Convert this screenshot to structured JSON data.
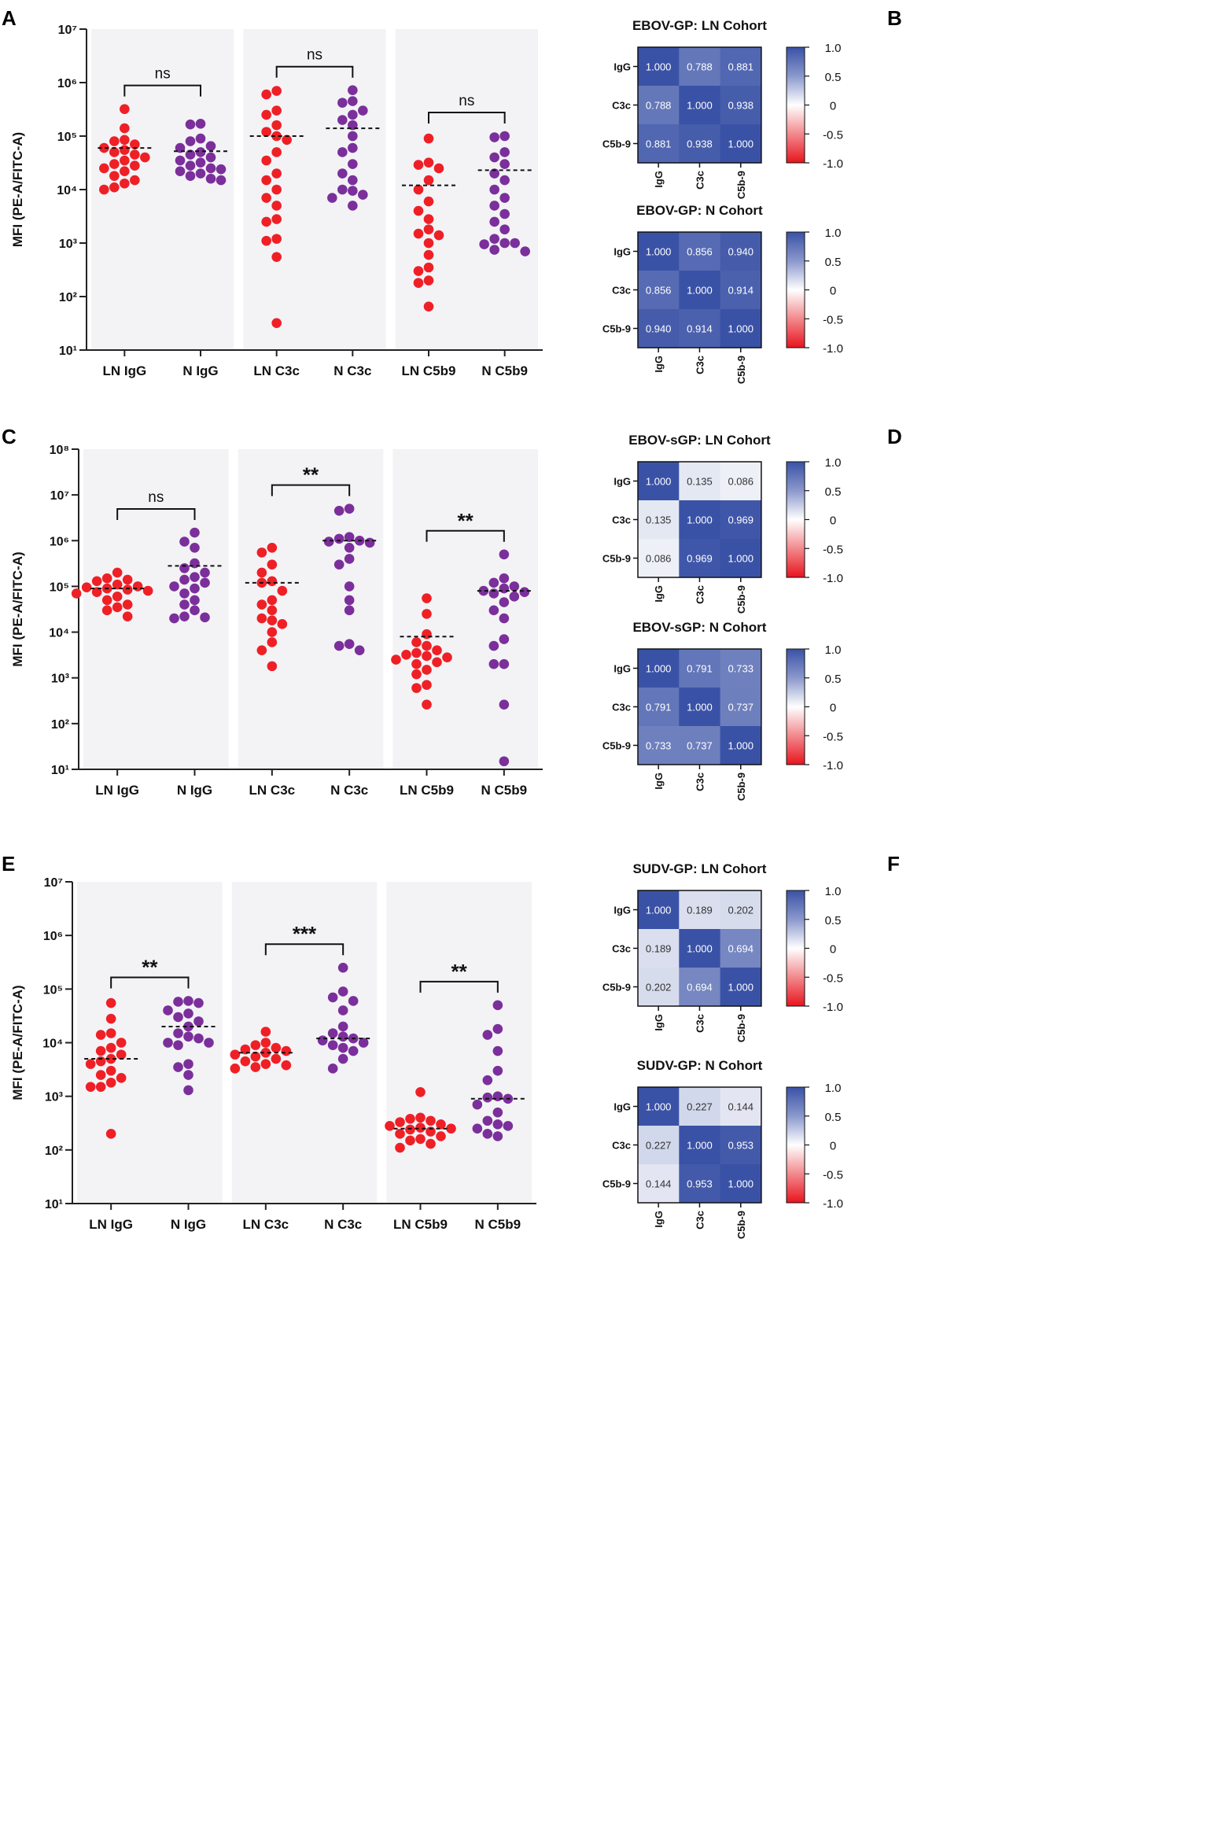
{
  "colors": {
    "ln": "#ee2026",
    "n": "#7b2f9b",
    "band": "#f3f3f6",
    "heat_pos": "#3a52a6",
    "heat_mid": "#ffffff",
    "heat_neg": "#e8141d",
    "axis": "#222222"
  },
  "categories": [
    "LN IgG",
    "N IgG",
    "LN C3c",
    "N C3c",
    "LN C5b9",
    "N C5b9"
  ],
  "ylabel": "MFI (PE-A/FITC-A)",
  "heat_labels": [
    "IgG",
    "C3c",
    "C5b-9"
  ],
  "colorbar_ticks": [
    "1.0",
    "0.5",
    "0",
    "-0.5",
    "-1.0"
  ],
  "chart_data": [
    {
      "panel": "A",
      "type": "scatter",
      "yscale": "log",
      "ylim_exp": [
        1,
        7
      ],
      "tick_labels": [
        "10¹",
        "10²",
        "10³",
        "10⁴",
        "10⁵",
        "10⁶",
        "10⁷"
      ],
      "significance": [
        "ns",
        "ns",
        "ns"
      ],
      "series": [
        {
          "name": "LN IgG",
          "median": 60000,
          "values": [
            320000,
            140000,
            85000,
            80000,
            70000,
            60000,
            55000,
            50000,
            45000,
            40000,
            35000,
            30000,
            28000,
            25000,
            22000,
            18000,
            15000,
            13000,
            11000,
            10000
          ]
        },
        {
          "name": "N IgG",
          "median": 52000,
          "values": [
            170000,
            165000,
            90000,
            80000,
            65000,
            60000,
            50000,
            45000,
            40000,
            35000,
            32000,
            28000,
            25000,
            24000,
            22000,
            20000,
            18000,
            16000,
            15000
          ]
        },
        {
          "name": "LN C3c",
          "median": 100000,
          "values": [
            700000,
            600000,
            300000,
            250000,
            160000,
            120000,
            100000,
            85000,
            50000,
            35000,
            20000,
            15000,
            10000,
            7000,
            5000,
            2800,
            2500,
            1200,
            1100,
            550,
            32
          ]
        },
        {
          "name": "N C3c",
          "median": 140000,
          "values": [
            720000,
            450000,
            420000,
            300000,
            250000,
            200000,
            160000,
            100000,
            60000,
            50000,
            30000,
            20000,
            15000,
            10000,
            9500,
            8000,
            7000,
            5000
          ]
        },
        {
          "name": "LN C5b9",
          "median": 12000,
          "values": [
            90000,
            32000,
            29000,
            25000,
            15000,
            10000,
            6000,
            4000,
            2800,
            1800,
            1500,
            1400,
            1000,
            600,
            350,
            300,
            200,
            180,
            65
          ]
        },
        {
          "name": "N C5b9",
          "median": 23000,
          "values": [
            100000,
            95000,
            50000,
            40000,
            30000,
            20000,
            15000,
            10000,
            7000,
            5000,
            3500,
            2500,
            1800,
            1200,
            1000,
            1000,
            950,
            750,
            700
          ]
        }
      ]
    },
    {
      "panel": "C",
      "type": "scatter",
      "yscale": "log",
      "ylim_exp": [
        1,
        8
      ],
      "tick_labels": [
        "10¹",
        "10²",
        "10³",
        "10⁴",
        "10⁵",
        "10⁶",
        "10⁷",
        "10⁸"
      ],
      "significance": [
        "ns",
        "**",
        "**"
      ],
      "series": [
        {
          "name": "LN IgG",
          "median": 90000,
          "values": [
            200000,
            150000,
            140000,
            130000,
            110000,
            100000,
            95000,
            90000,
            85000,
            80000,
            75000,
            70000,
            60000,
            50000,
            40000,
            35000,
            30000,
            22000
          ]
        },
        {
          "name": "N IgG",
          "median": 280000,
          "values": [
            1500000,
            950000,
            700000,
            320000,
            250000,
            200000,
            160000,
            140000,
            120000,
            100000,
            90000,
            70000,
            50000,
            40000,
            30000,
            22000,
            21000,
            20000
          ]
        },
        {
          "name": "LN C3c",
          "median": 120000,
          "values": [
            700000,
            550000,
            300000,
            200000,
            130000,
            120000,
            80000,
            50000,
            40000,
            30000,
            20000,
            18000,
            15000,
            10000,
            6000,
            4000,
            1800
          ]
        },
        {
          "name": "N C3c",
          "median": 1000000,
          "values": [
            5000000,
            4500000,
            1200000,
            1100000,
            1000000,
            950000,
            900000,
            700000,
            400000,
            300000,
            100000,
            50000,
            30000,
            5500,
            5000,
            4000
          ]
        },
        {
          "name": "LN C5b9",
          "median": 8000,
          "values": [
            55000,
            25000,
            9000,
            6000,
            5000,
            4000,
            3500,
            3200,
            3000,
            2800,
            2500,
            2200,
            2000,
            1500,
            1200,
            700,
            600,
            260
          ]
        },
        {
          "name": "N C5b9",
          "median": 80000,
          "values": [
            500000,
            150000,
            120000,
            100000,
            90000,
            80000,
            75000,
            70000,
            60000,
            45000,
            30000,
            20000,
            7000,
            5000,
            2000,
            2000,
            260,
            15
          ]
        }
      ]
    },
    {
      "panel": "E",
      "type": "scatter",
      "yscale": "log",
      "ylim_exp": [
        1,
        7
      ],
      "tick_labels": [
        "10¹",
        "10²",
        "10³",
        "10⁴",
        "10⁵",
        "10⁶",
        "10⁷"
      ],
      "significance": [
        "**",
        "***",
        "**"
      ],
      "series": [
        {
          "name": "LN IgG",
          "median": 5000,
          "values": [
            55000,
            28000,
            15000,
            14000,
            10000,
            8000,
            7000,
            6000,
            5000,
            4500,
            4000,
            3000,
            2500,
            2200,
            1800,
            1500,
            1500,
            200
          ]
        },
        {
          "name": "N IgG",
          "median": 20000,
          "values": [
            60000,
            58000,
            55000,
            40000,
            35000,
            30000,
            25000,
            20000,
            15000,
            13000,
            12000,
            10000,
            10000,
            9000,
            4000,
            3500,
            2500,
            1300
          ]
        },
        {
          "name": "LN C3c",
          "median": 6500,
          "values": [
            16000,
            10000,
            9000,
            8000,
            7500,
            7000,
            6500,
            6000,
            5500,
            5000,
            4500,
            4000,
            3800,
            3500,
            3300
          ]
        },
        {
          "name": "N C3c",
          "median": 12000,
          "values": [
            250000,
            90000,
            70000,
            60000,
            40000,
            20000,
            15000,
            13000,
            12000,
            11000,
            10000,
            9000,
            8000,
            7000,
            5000,
            3300
          ]
        },
        {
          "name": "LN C5b9",
          "median": 250,
          "values": [
            1200,
            400,
            380,
            350,
            330,
            300,
            280,
            260,
            250,
            240,
            220,
            200,
            180,
            160,
            150,
            130,
            110
          ]
        },
        {
          "name": "N C5b9",
          "median": 900,
          "values": [
            50000,
            18000,
            14000,
            7000,
            3000,
            2000,
            1000,
            950,
            900,
            700,
            500,
            350,
            300,
            280,
            250,
            200,
            180
          ]
        }
      ]
    },
    {
      "panel": "B",
      "type": "heatmap",
      "title": "EBOV-GP: LN Cohort",
      "matrix": [
        [
          "1.000",
          "0.788",
          "0.881"
        ],
        [
          "0.788",
          "1.000",
          "0.938"
        ],
        [
          "0.881",
          "0.938",
          "1.000"
        ]
      ]
    },
    {
      "panel": "B",
      "type": "heatmap",
      "title": "EBOV-GP: N Cohort",
      "matrix": [
        [
          "1.000",
          "0.856",
          "0.940"
        ],
        [
          "0.856",
          "1.000",
          "0.914"
        ],
        [
          "0.940",
          "0.914",
          "1.000"
        ]
      ]
    },
    {
      "panel": "D",
      "type": "heatmap",
      "title": "EBOV-sGP: LN Cohort",
      "matrix": [
        [
          "1.000",
          "0.135",
          "0.086"
        ],
        [
          "0.135",
          "1.000",
          "0.969"
        ],
        [
          "0.086",
          "0.969",
          "1.000"
        ]
      ]
    },
    {
      "panel": "D",
      "type": "heatmap",
      "title": "EBOV-sGP: N Cohort",
      "matrix": [
        [
          "1.000",
          "0.791",
          "0.733"
        ],
        [
          "0.791",
          "1.000",
          "0.737"
        ],
        [
          "0.733",
          "0.737",
          "1.000"
        ]
      ]
    },
    {
      "panel": "F",
      "type": "heatmap",
      "title": "SUDV-GP: LN Cohort",
      "matrix": [
        [
          "1.000",
          "0.189",
          "0.202"
        ],
        [
          "0.189",
          "1.000",
          "0.694"
        ],
        [
          "0.202",
          "0.694",
          "1.000"
        ]
      ]
    },
    {
      "panel": "F",
      "type": "heatmap",
      "title": "SUDV-GP: N Cohort",
      "matrix": [
        [
          "1.000",
          "0.227",
          "0.144"
        ],
        [
          "0.227",
          "1.000",
          "0.953"
        ],
        [
          "0.144",
          "0.953",
          "1.000"
        ]
      ]
    }
  ]
}
